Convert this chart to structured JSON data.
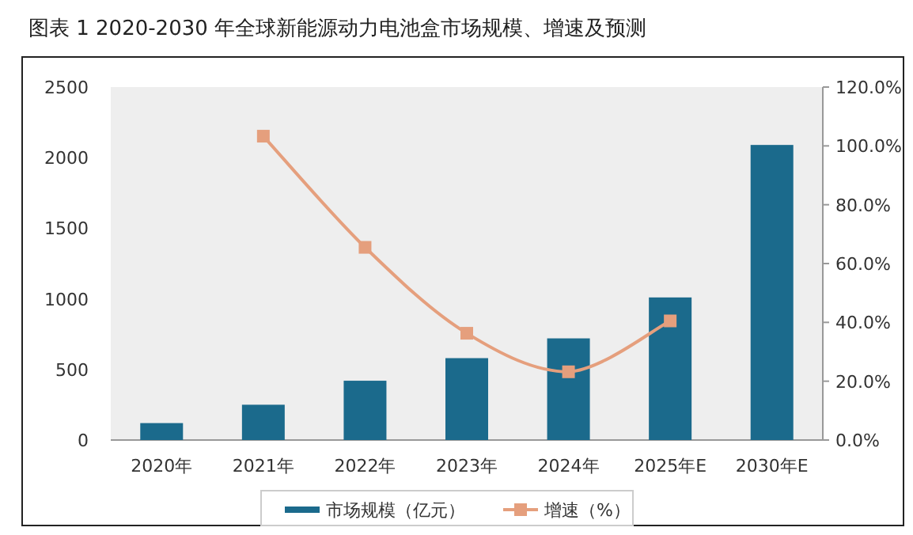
{
  "chart_data": {
    "type": "bar",
    "title": "图表 1   2020-2030 年全球新能源动力电池盒市场规模、增速及预测",
    "categories": [
      "2020年",
      "2021年",
      "2022年",
      "2023年",
      "2024年",
      "2025年E",
      "2030年E"
    ],
    "series": [
      {
        "name": "市场规模（亿元）",
        "color": "#1b6a8c",
        "values": [
          120,
          250,
          420,
          580,
          720,
          1010,
          2090
        ]
      },
      {
        "name": "增速（%）",
        "type": "line",
        "axis": "y2",
        "color": "#e59f7d",
        "marker": "square",
        "values": [
          null,
          103.3,
          65.5,
          36.3,
          23.2,
          40.5,
          null
        ]
      }
    ],
    "ylim": [
      0,
      2500
    ],
    "yticks": [
      0,
      500,
      1000,
      1500,
      2000,
      2500
    ],
    "y2lim": [
      0,
      120
    ],
    "y2ticks": [
      {
        "value": 0,
        "label": "0.0%"
      },
      {
        "value": 20,
        "label": "20.0%"
      },
      {
        "value": 40,
        "label": "40.0%"
      },
      {
        "value": 60,
        "label": "60.0%"
      },
      {
        "value": 80,
        "label": "80.0%"
      },
      {
        "value": 100,
        "label": "100.0%"
      },
      {
        "value": 120,
        "label": "120.0%"
      }
    ],
    "grid": false,
    "legend": "bottom"
  }
}
